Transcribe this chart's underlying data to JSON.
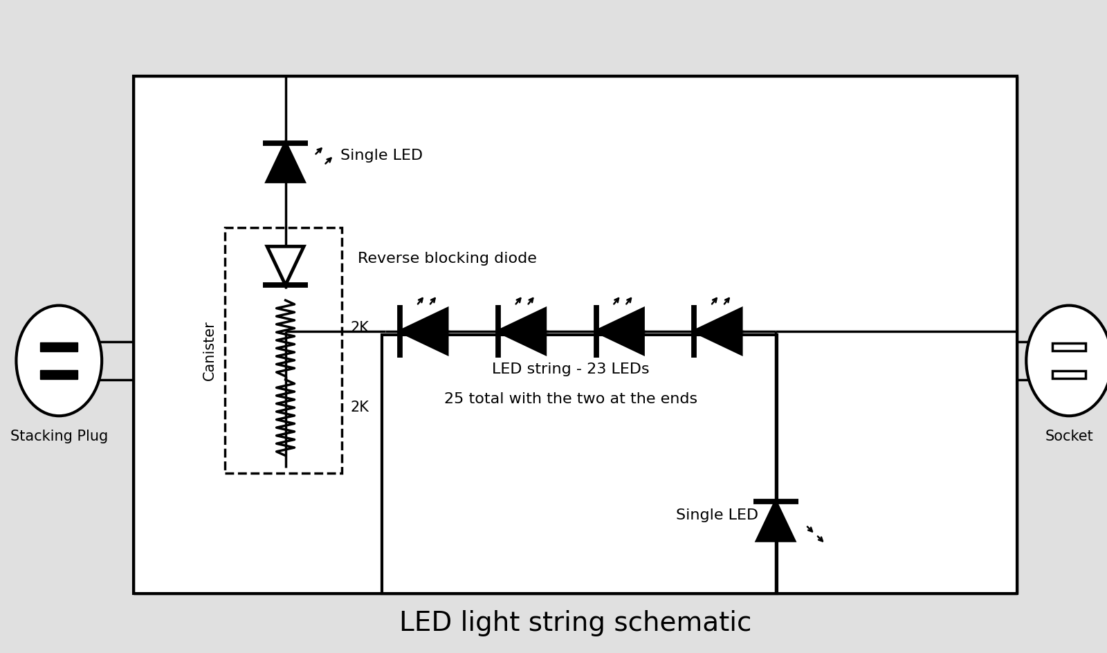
{
  "title": "LED light string schematic",
  "bg_color": "#e0e0e0",
  "box_bg": "#ffffff",
  "fg_color": "#000000",
  "labels": {
    "single_led_top": "Single LED",
    "reverse_blocking": "Reverse blocking diode",
    "canister": "Canister",
    "res1": "2K",
    "res2": "2K",
    "led_string_line1": "LED string - 23 LEDs",
    "led_string_line2": "25 total with the two at the ends",
    "single_led_bot": "Single LED",
    "stacking_plug": "Stacking Plug",
    "socket": "Socket"
  },
  "title_fontsize": 28,
  "label_fontsize": 14,
  "lw": 2.5,
  "lw_thick": 3.0,
  "lw_comp": 3.5
}
